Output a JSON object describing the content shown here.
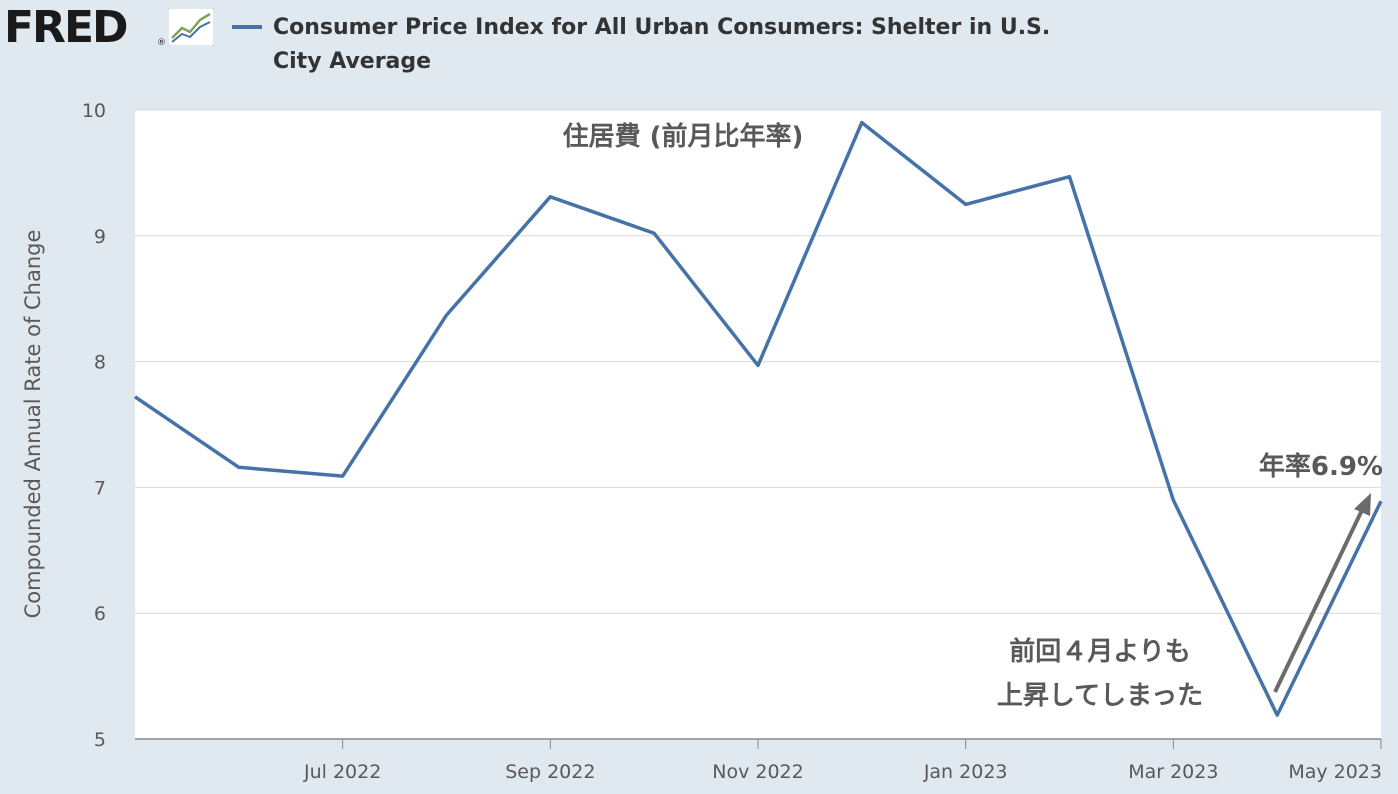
{
  "header": {
    "logo_text": "FRED",
    "logo_reg": "®",
    "title": "Consumer Price Index for All Urban Consumers: Shelter in U.S. City Average"
  },
  "colors": {
    "background": "#e1e9f0",
    "plot_background": "#ffffff",
    "series": "#4572a7",
    "annotation": "#595959"
  },
  "chart_data": {
    "type": "line",
    "title": "Consumer Price Index for All Urban Consumers: Shelter in U.S. City Average",
    "xlabel": "",
    "ylabel": "Compounded Annual Rate of Change",
    "ylim": [
      5,
      10
    ],
    "yticks": [
      5,
      6,
      7,
      8,
      9,
      10
    ],
    "grid": true,
    "x": [
      "2022-05",
      "2022-06",
      "2022-07",
      "2022-08",
      "2022-09",
      "2022-10",
      "2022-11",
      "2022-12",
      "2023-01",
      "2023-02",
      "2023-03",
      "2023-04",
      "2023-05"
    ],
    "x_tick_labels": [
      {
        "at": "2022-07",
        "label": "Jul 2022"
      },
      {
        "at": "2022-09",
        "label": "Sep 2022"
      },
      {
        "at": "2022-11",
        "label": "Nov 2022"
      },
      {
        "at": "2023-01",
        "label": "Jan 2023"
      },
      {
        "at": "2023-03",
        "label": "Mar 2023"
      },
      {
        "at": "2023-05",
        "label": "May 2023"
      }
    ],
    "series": [
      {
        "name": "Consumer Price Index for All Urban Consumers: Shelter in U.S. City Average",
        "values": [
          7.72,
          7.16,
          7.09,
          8.37,
          9.31,
          9.02,
          7.97,
          9.9,
          9.25,
          9.47,
          6.9,
          5.19,
          6.89
        ]
      }
    ],
    "annotations": {
      "inner_title": "住居費 (前月比年率)",
      "rate_label": "年率6.9%",
      "note_line1": "前回４月よりも",
      "note_line2": "上昇してしまった"
    }
  }
}
